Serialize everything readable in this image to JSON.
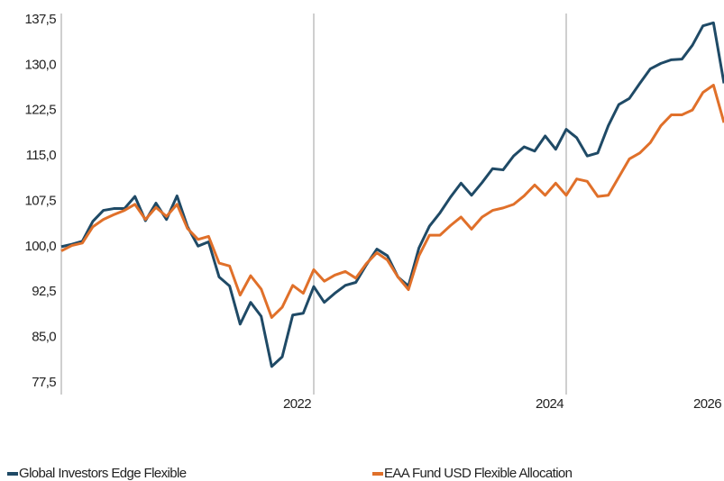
{
  "chart_data": {
    "type": "line",
    "categories": [
      null,
      null,
      null,
      null,
      null,
      null,
      null,
      null,
      null,
      null,
      null,
      null,
      null,
      null,
      null,
      null,
      null,
      null,
      null,
      null,
      null,
      null,
      null,
      null,
      "2022",
      null,
      null,
      null,
      null,
      null,
      null,
      null,
      null,
      null,
      null,
      null,
      null,
      null,
      null,
      null,
      null,
      null,
      null,
      null,
      null,
      null,
      null,
      null,
      "2024",
      null,
      null,
      null,
      null,
      null,
      null,
      null,
      null,
      null,
      null,
      null,
      null,
      null,
      null,
      "2026"
    ],
    "series": [
      {
        "name": "Global Investors Edge Flexible",
        "color": "#1f4a66",
        "values": [
          100,
          100.4,
          100.9,
          104.2,
          106,
          106.3,
          106.3,
          108.3,
          104.3,
          107.2,
          104.5,
          108.4,
          103.3,
          100.1,
          100.8,
          95,
          93.5,
          87.2,
          90.8,
          88.5,
          80.2,
          81.8,
          88.7,
          89,
          93.4,
          90.8,
          92.3,
          93.6,
          94.1,
          97,
          99.6,
          98.5,
          95,
          93.5,
          99.8,
          103.4,
          105.6,
          108.2,
          110.5,
          108.5,
          110.6,
          112.9,
          112.7,
          115,
          116.5,
          115.8,
          118.3,
          116.1,
          119.4,
          118,
          115,
          115.5,
          120,
          123.5,
          124.5,
          127,
          129.4,
          130.3,
          130.9,
          131,
          133.3,
          136.5,
          137,
          127
        ]
      },
      {
        "name": "EAA Fund USD Flexible Allocation",
        "color": "#e0702a",
        "values": [
          99.3,
          100.2,
          100.6,
          103.3,
          104.5,
          105.3,
          106,
          107,
          104.5,
          106.5,
          105,
          107,
          103,
          101.2,
          101.7,
          97.3,
          96.8,
          92,
          95.2,
          93,
          88.3,
          90,
          93.6,
          92.3,
          96.2,
          94.3,
          95.3,
          95.9,
          94.8,
          97.2,
          99,
          97.8,
          95,
          92.9,
          98.5,
          101.9,
          101.9,
          103.5,
          104.9,
          102.9,
          104.9,
          106,
          106.4,
          107,
          108.4,
          110.2,
          108.5,
          110.5,
          108.5,
          111.2,
          110.8,
          108.3,
          108.5,
          111.5,
          114.5,
          115.5,
          117.2,
          120,
          121.8,
          121.8,
          122.6,
          125.5,
          126.7,
          120.5
        ]
      }
    ],
    "ylim": [
      77.5,
      137.5
    ],
    "yticks": [
      {
        "value": 77.5,
        "label": "77,5"
      },
      {
        "value": 85,
        "label": "85,0"
      },
      {
        "value": 92.5,
        "label": "92,5"
      },
      {
        "value": 100,
        "label": "100,0"
      },
      {
        "value": 107.5,
        "label": "107,5"
      },
      {
        "value": 115,
        "label": "115,0"
      },
      {
        "value": 122.5,
        "label": "122,5"
      },
      {
        "value": 130,
        "label": "130,0"
      },
      {
        "value": 137.5,
        "label": "137,5"
      }
    ],
    "grid": true
  }
}
